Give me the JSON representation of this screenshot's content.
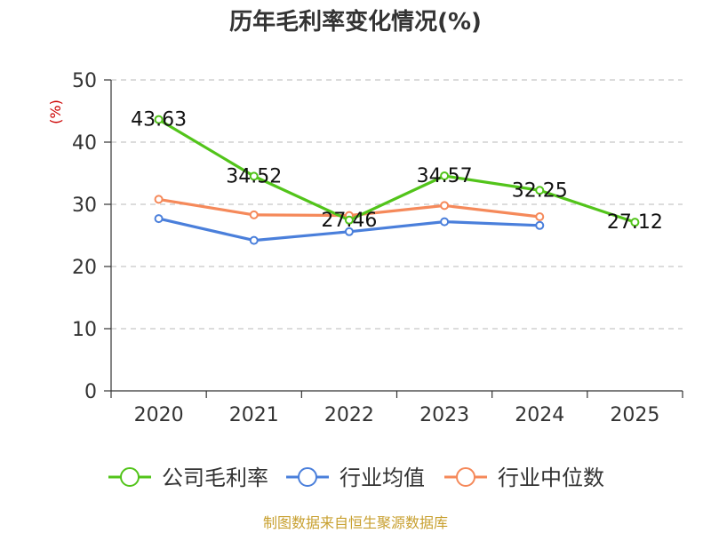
{
  "chart_data": {
    "type": "line",
    "title": "历年毛利率变化情况(%)",
    "ylabel": "(%)",
    "xlabel": "",
    "categories": [
      "2020",
      "2021",
      "2022",
      "2023",
      "2024",
      "2025"
    ],
    "ylim": [
      0,
      50
    ],
    "yticks": [
      0,
      10,
      20,
      30,
      40,
      50
    ],
    "grid": true,
    "legend_position": "bottom",
    "series": [
      {
        "name": "公司毛利率",
        "color": "#52c41a",
        "values": [
          43.63,
          34.52,
          27.46,
          34.57,
          32.25,
          27.12
        ],
        "labels": [
          "43.63",
          "34.52",
          "27.46",
          "34.57",
          "32.25",
          "27.12"
        ]
      },
      {
        "name": "行业均值",
        "color": "#4a7fdb",
        "values": [
          27.7,
          24.2,
          25.6,
          27.2,
          26.6,
          null
        ]
      },
      {
        "name": "行业中位数",
        "color": "#f5895a",
        "values": [
          30.8,
          28.3,
          28.2,
          29.8,
          28.0,
          null
        ]
      }
    ]
  },
  "source": "制图数据来自恒生聚源数据库"
}
